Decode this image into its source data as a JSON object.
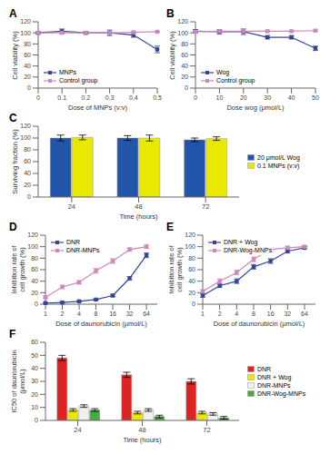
{
  "chart_data": [
    {
      "type": "line",
      "title": "A",
      "x": [
        0,
        0.1,
        0.2,
        0.3,
        0.4,
        0.5
      ],
      "series": [
        {
          "name": "MNPs",
          "color": "#334499",
          "marker": "square",
          "values": [
            100,
            103,
            100,
            100,
            96,
            70
          ],
          "errors": [
            2,
            4,
            2,
            5,
            4,
            6
          ]
        },
        {
          "name": "Control group",
          "color": "#cc88bb",
          "marker": "square",
          "values": [
            100,
            100,
            100,
            100,
            101,
            102
          ],
          "errors": [
            1,
            1,
            1,
            1,
            1,
            1
          ]
        }
      ],
      "xlabel": "Dose of MNPs (v:v)",
      "ylabel": "Cell viability (%)",
      "xlim": [
        0,
        0.5
      ],
      "xticks": [
        0,
        0.1,
        0.2,
        0.3,
        0.4,
        0.5
      ],
      "ylim": [
        0,
        120
      ],
      "yticks": [
        0,
        20,
        40,
        60,
        80,
        100,
        120
      ],
      "legend": "lower left",
      "grid": false
    },
    {
      "type": "line",
      "title": "B",
      "x": [
        0,
        10,
        20,
        30,
        40,
        50
      ],
      "series": [
        {
          "name": "Wog",
          "color": "#334499",
          "marker": "square",
          "values": [
            103,
            102,
            102,
            92,
            92,
            72
          ],
          "errors": [
            3,
            4,
            5,
            3,
            3,
            4
          ]
        },
        {
          "name": "Control group",
          "color": "#cc88bb",
          "marker": "square",
          "values": [
            102,
            103,
            103,
            103,
            103,
            104
          ],
          "errors": [
            1,
            1,
            1,
            1,
            1,
            1
          ]
        }
      ],
      "xlabel": "Dose wog (μmol/L)",
      "ylabel": "Cell viability (%)",
      "xlim": [
        0,
        50
      ],
      "xticks": [
        0,
        10,
        20,
        30,
        40,
        50
      ],
      "ylim": [
        0,
        120
      ],
      "yticks": [
        0,
        20,
        40,
        60,
        80,
        100,
        120
      ],
      "legend": "lower left",
      "grid": false
    },
    {
      "type": "bar",
      "title": "C",
      "categories": [
        "24",
        "48",
        "72"
      ],
      "series": [
        {
          "name": "20 μmol/L Wog",
          "color": "#2255aa",
          "values": [
            100,
            100,
            97
          ],
          "errors": [
            5,
            4,
            3
          ]
        },
        {
          "name": "0.1 MNPs (v:v)",
          "color": "#e8e800",
          "values": [
            101,
            100,
            99
          ],
          "errors": [
            4,
            5,
            3
          ]
        }
      ],
      "xlabel": "Time (hours)",
      "ylabel": "Surviving fraction (%)",
      "ylim": [
        0,
        120
      ],
      "yticks": [
        0,
        20,
        40,
        60,
        80,
        100,
        120
      ],
      "legend": "center right",
      "grid": false
    },
    {
      "type": "line",
      "title": "D",
      "x": [
        1,
        2,
        4,
        8,
        16,
        32,
        64
      ],
      "series": [
        {
          "name": "DNR",
          "color": "#334499",
          "marker": "square",
          "values": [
            2,
            3,
            5,
            8,
            15,
            45,
            85
          ],
          "errors": [
            1,
            1,
            1,
            1,
            2,
            3,
            4
          ]
        },
        {
          "name": "DNR-MNPs",
          "color": "#cc88bb",
          "marker": "square",
          "values": [
            12,
            30,
            38,
            58,
            75,
            95,
            100
          ],
          "errors": [
            2,
            3,
            3,
            4,
            4,
            3,
            3
          ]
        }
      ],
      "xlabel": "Dose of daunorubicin (μmol/L)",
      "ylabel": "Inhibition rate of\ncell growth (%)",
      "log": "x",
      "xlim": [
        1,
        100
      ],
      "xticks": [
        1,
        2,
        4,
        8,
        16,
        32,
        64
      ],
      "ylim": [
        0,
        120
      ],
      "yticks": [
        0,
        20,
        40,
        60,
        80,
        100,
        120
      ],
      "legend": "upper left",
      "grid": false
    },
    {
      "type": "line",
      "title": "E",
      "x": [
        1,
        2,
        4,
        8,
        16,
        32,
        64
      ],
      "series": [
        {
          "name": "DNR + Wog",
          "color": "#334499",
          "marker": "square",
          "values": [
            15,
            32,
            40,
            65,
            75,
            92,
            98
          ],
          "errors": [
            3,
            3,
            4,
            4,
            4,
            3,
            2
          ]
        },
        {
          "name": "DNR-Wog-MNPs",
          "color": "#cc88bb",
          "marker": "square",
          "values": [
            22,
            40,
            55,
            78,
            95,
            98,
            100
          ],
          "errors": [
            3,
            4,
            4,
            4,
            3,
            3,
            2
          ]
        }
      ],
      "xlabel": "Dose of daunorubicin (μmol/L)",
      "ylabel": "Inhibition rate of\ncell growth (%)",
      "log": "x",
      "xlim": [
        1,
        100
      ],
      "xticks": [
        1,
        2,
        4,
        8,
        16,
        32,
        64
      ],
      "ylim": [
        0,
        120
      ],
      "yticks": [
        0,
        20,
        40,
        60,
        80,
        100,
        120
      ],
      "legend": "upper left",
      "grid": false
    },
    {
      "type": "bar",
      "title": "F",
      "categories": [
        "24",
        "48",
        "72"
      ],
      "series": [
        {
          "name": "DNR",
          "color": "#dd2222",
          "values": [
            48,
            35,
            30
          ],
          "errors": [
            2,
            2,
            2
          ]
        },
        {
          "name": "DNR + Wog",
          "color": "#e8e800",
          "values": [
            8,
            6,
            6
          ],
          "errors": [
            1,
            1,
            1
          ]
        },
        {
          "name": "DNR-MNPs",
          "color": "#f0f0f0",
          "values": [
            11,
            8,
            5
          ],
          "errors": [
            1,
            1,
            1
          ]
        },
        {
          "name": "DNR-Wog-MNPs",
          "color": "#44aa44",
          "values": [
            8,
            3,
            2
          ],
          "errors": [
            1,
            1,
            1
          ]
        }
      ],
      "xlabel": "Time (hours)",
      "ylabel": "IC50 of daunorubicin\n(μmol/L)",
      "ylim": [
        0,
        60
      ],
      "yticks": [
        0,
        10,
        20,
        30,
        40,
        50,
        60
      ],
      "legend": "center right",
      "grid": false
    }
  ]
}
